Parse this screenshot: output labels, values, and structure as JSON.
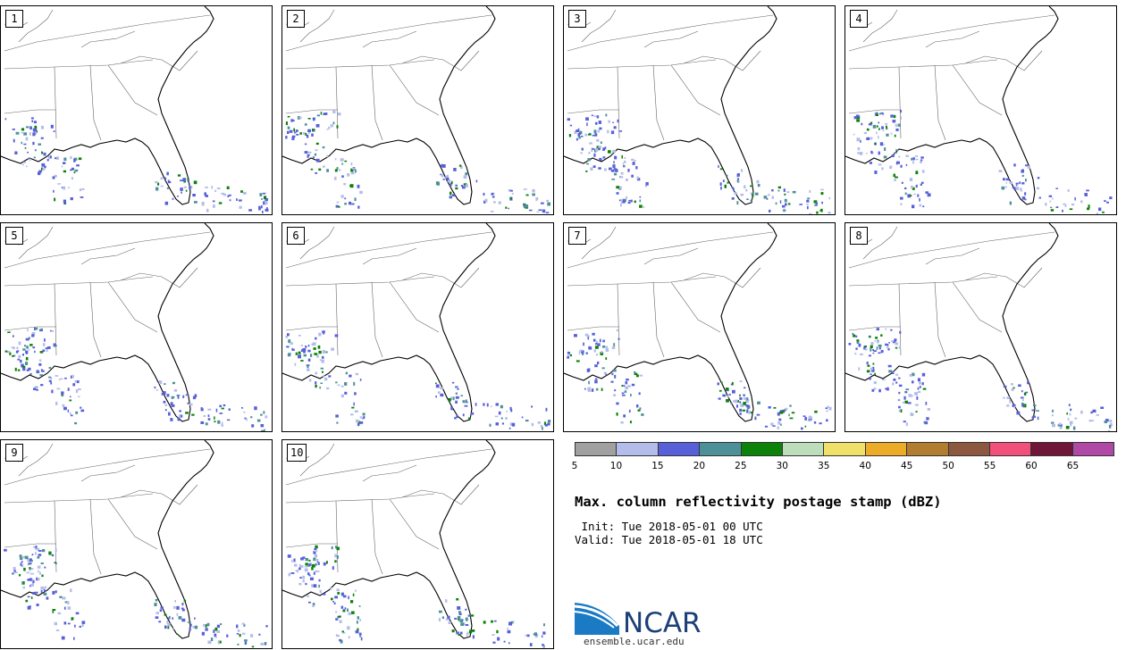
{
  "members": [
    "1",
    "2",
    "3",
    "4",
    "5",
    "6",
    "7",
    "8",
    "9",
    "10"
  ],
  "colorbar": {
    "colors": [
      "#a0a0a0",
      "#b4bdea",
      "#5760d8",
      "#4d9098",
      "#0c8208",
      "#bdddbb",
      "#efe06a",
      "#ecac28",
      "#b27d2e",
      "#8c5840",
      "#f0507a",
      "#6e1737",
      "#b049a6"
    ],
    "ticks": [
      "5",
      "10",
      "15",
      "20",
      "25",
      "30",
      "35",
      "40",
      "45",
      "50",
      "55",
      "60",
      "65"
    ]
  },
  "title": "Max. column reflectivity postage stamp (dBZ)",
  "init": " Init: Tue 2018-05-01 00 UTC",
  "valid": "Valid: Tue 2018-05-01 18 UTC",
  "logo": {
    "name": "NCAR",
    "url": "ensemble.ucar.edu"
  }
}
